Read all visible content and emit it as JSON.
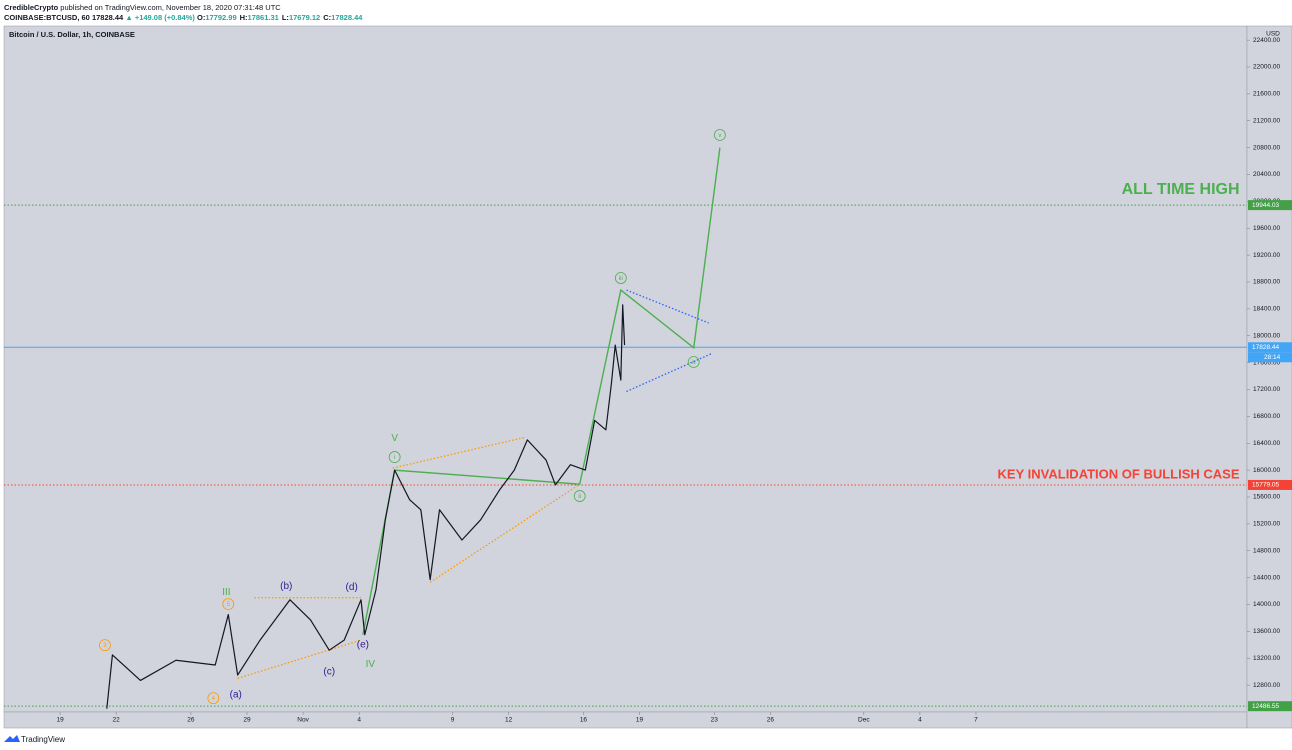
{
  "header": {
    "publisher": "CredibleCrypto",
    "published": "published on TradingView.com, November 18, 2020 07:31:48 UTC",
    "symbol": "COINBASE:BTCUSD, 60",
    "last": "17828.44",
    "change": "▲ +149.08 (+0.84%)",
    "ohlc": [
      {
        "key": "O:",
        "value": "17792.99"
      },
      {
        "key": "H:",
        "value": "17861.31"
      },
      {
        "key": "L:",
        "value": "17679.12"
      },
      {
        "key": "C:",
        "value": "17828.44"
      }
    ]
  },
  "chart_data": {
    "type": "line",
    "title": "Bitcoin / U.S. Dollar, 1h, COINBASE",
    "y_axis_label": "USD",
    "color": "#131722",
    "x": [
      21.5,
      21.8,
      23.3,
      25.2,
      27.3,
      28.0,
      28.5,
      29.7,
      31.3,
      32.4,
      33.4,
      34.2,
      35.1,
      35.3,
      35.9,
      36.4,
      36.9,
      37.7,
      38.3,
      38.8,
      39.3,
      40.5,
      41.5,
      42.5,
      43.3,
      44.0,
      45.0,
      45.5,
      46.3,
      47.1,
      47.6,
      48.2,
      48.5,
      48.7,
      49.0,
      49.1,
      49.2
    ],
    "values": [
      12450,
      13250,
      12870,
      13170,
      13100,
      13850,
      12950,
      13470,
      14070,
      13770,
      13320,
      13470,
      14070,
      13550,
      14220,
      15260,
      16000,
      15560,
      15410,
      14370,
      15410,
      14960,
      15260,
      15700,
      16000,
      16450,
      16150,
      15780,
      16080,
      16000,
      16740,
      16600,
      17300,
      17860,
      17340,
      18460,
      17860
    ],
    "xlim": [
      16,
      82.5
    ],
    "ylim": [
      12400,
      22610
    ],
    "xticks": [
      19,
      22,
      26,
      29,
      {
        "value": 32,
        "label": "Nov"
      },
      {
        "value": 35,
        "label": "4"
      },
      {
        "value": 40,
        "label": "9"
      },
      {
        "value": 43,
        "label": "12"
      },
      {
        "value": 47,
        "label": "16"
      },
      {
        "value": 50,
        "label": "19"
      },
      {
        "value": 54,
        "label": "23"
      },
      {
        "value": 57,
        "label": "26"
      },
      {
        "value": 62,
        "label": "Dec"
      },
      {
        "value": 65,
        "label": "4"
      },
      {
        "value": 68,
        "label": "7"
      }
    ],
    "yticks": [
      {
        "value": 12800,
        "label": "12800.00"
      },
      {
        "value": 13200,
        "label": "13200.00"
      },
      {
        "value": 13600,
        "label": "13600.00"
      },
      {
        "value": 14000,
        "label": "14000.00"
      },
      {
        "value": 14400,
        "label": "14400.00"
      },
      {
        "value": 14800,
        "label": "14800.00"
      },
      {
        "value": 15200,
        "label": "15200.00"
      },
      {
        "value": 15600,
        "label": "15600.00"
      },
      {
        "value": 16000,
        "label": "16000.00"
      },
      {
        "value": 16400,
        "label": "16400.00"
      },
      {
        "value": 16800,
        "label": "16800.00"
      },
      {
        "value": 17200,
        "label": "17200.00"
      },
      {
        "value": 17600,
        "label": "17600.00"
      },
      {
        "value": 18000,
        "label": "18000.00"
      },
      {
        "value": 18400,
        "label": "18400.00"
      },
      {
        "value": 18800,
        "label": "18800.00"
      },
      {
        "value": 19200,
        "label": "19200.00"
      },
      {
        "value": 19600,
        "label": "19600.00"
      },
      {
        "value": 20000,
        "label": "20000.00"
      },
      {
        "value": 20400,
        "label": "20400.00"
      },
      {
        "value": 20800,
        "label": "20800.00"
      },
      {
        "value": 21200,
        "label": "21200.00"
      },
      {
        "value": 21600,
        "label": "21600.00"
      },
      {
        "value": 22000,
        "label": "22000.00"
      },
      {
        "value": 22400,
        "label": "22400.00"
      }
    ],
    "levels": [
      {
        "price": 19944.03,
        "color": "#43a047",
        "style": "dotted"
      },
      {
        "price": 17828.44,
        "color": "#42a5f5",
        "style": "solid"
      },
      {
        "price": 15779.05,
        "color": "#f44336",
        "style": "dotted"
      },
      {
        "price": 12486.55,
        "color": "#43a047",
        "style": "dotted"
      }
    ],
    "countdown": "28:14",
    "drawings": [
      {
        "color": "#4caf50",
        "style": "solid",
        "x": [
          35.2,
          36.9,
          46.8,
          49.0,
          52.9,
          54.3
        ],
        "y": [
          13550,
          16000,
          15790,
          18680,
          17820,
          20800
        ]
      },
      {
        "color": "#2962ff",
        "style": "dotted",
        "x": [
          49.3,
          53.7
        ],
        "y": [
          18680,
          18190
        ]
      },
      {
        "color": "#2962ff",
        "style": "dotted",
        "x": [
          49.3,
          53.9
        ],
        "y": [
          17170,
          17740
        ]
      },
      {
        "color": "#ff9800",
        "style": "dotted",
        "x": [
          36.8,
          43.9
        ],
        "y": [
          16030,
          16490
        ]
      },
      {
        "color": "#ff9800",
        "style": "dotted",
        "x": [
          38.8,
          46.8
        ],
        "y": [
          14330,
          15790
        ]
      },
      {
        "color": "#ff9800",
        "style": "dotted",
        "x": [
          29.4,
          35.1
        ],
        "y": [
          14100,
          14100
        ]
      },
      {
        "color": "#ff9800",
        "style": "dotted",
        "x": [
          28.5,
          35.1
        ],
        "y": [
          12900,
          13470
        ]
      }
    ],
    "wave_labels": [
      {
        "text": "3",
        "x": 21.4,
        "y": 13395,
        "color": "#ff9800",
        "circle": true
      },
      {
        "text": "4",
        "x": 27.2,
        "y": 12606,
        "color": "#ff9800",
        "circle": true
      },
      {
        "text": "5",
        "x": 28.0,
        "y": 14006,
        "color": "#ff9800",
        "circle": true
      },
      {
        "text": "III",
        "x": 27.9,
        "y": 14185,
        "color": "#4caf50",
        "circle": false
      },
      {
        "text": "(a)",
        "x": 28.4,
        "y": 12666,
        "color": "#311b92",
        "circle": false
      },
      {
        "text": "(b)",
        "x": 31.1,
        "y": 14274,
        "color": "#311b92",
        "circle": false
      },
      {
        "text": "(c)",
        "x": 33.4,
        "y": 13008,
        "color": "#311b92",
        "circle": false
      },
      {
        "text": "(d)",
        "x": 34.6,
        "y": 14259,
        "color": "#311b92",
        "circle": false
      },
      {
        "text": "(e)",
        "x": 35.2,
        "y": 13410,
        "color": "#311b92",
        "circle": false
      },
      {
        "text": "IV",
        "x": 35.6,
        "y": 13113,
        "color": "#4caf50",
        "circle": false
      },
      {
        "text": "V",
        "x": 36.9,
        "y": 16477,
        "color": "#4caf50",
        "circle": false
      },
      {
        "text": "i",
        "x": 36.9,
        "y": 16194,
        "color": "#4caf50",
        "circle": true
      },
      {
        "text": "ii",
        "x": 46.8,
        "y": 15614,
        "color": "#4caf50",
        "circle": true
      },
      {
        "text": "iii",
        "x": 49.0,
        "y": 18859,
        "color": "#4caf50",
        "circle": true
      },
      {
        "text": "iv",
        "x": 52.9,
        "y": 17609,
        "color": "#4caf50",
        "circle": true
      },
      {
        "text": "v",
        "x": 54.3,
        "y": 20988,
        "color": "#4caf50",
        "circle": true
      }
    ],
    "annotations": [
      {
        "text": "ALL TIME HIGH",
        "x": 82.1,
        "y": 20170,
        "color": "#4caf50"
      },
      {
        "text": "KEY INVALIDATION OF BULLISH CASE",
        "x": 82.1,
        "y": 15926,
        "color": "#f44336"
      }
    ]
  },
  "footer": {
    "brand": "TradingView"
  }
}
